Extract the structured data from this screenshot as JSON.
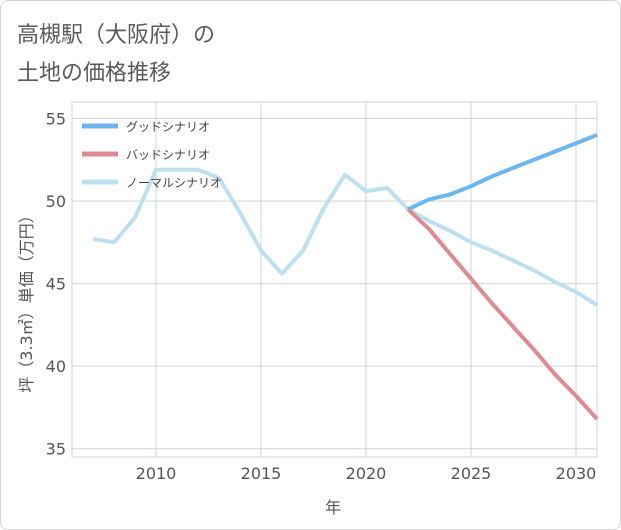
{
  "title": {
    "line1": "高槻駅（大阪府）の",
    "line2": "土地の価格推移"
  },
  "chart_data": {
    "type": "line",
    "xlabel": "年",
    "ylabel": "坪（3.3㎡）単価（万円）",
    "xlim": [
      2006,
      2031
    ],
    "ylim": [
      34.5,
      56
    ],
    "xticks": [
      2010,
      2015,
      2020,
      2025,
      2030
    ],
    "yticks": [
      35,
      40,
      45,
      50,
      55
    ],
    "grid": true,
    "legend_position": "top-left",
    "series": [
      {
        "name": "グッドシナリオ",
        "color": "#6cb6ef",
        "x": [
          2022,
          2023,
          2024,
          2025,
          2026,
          2027,
          2028,
          2029,
          2030,
          2031
        ],
        "y": [
          49.5,
          50.1,
          50.4,
          50.9,
          51.5,
          52.0,
          52.5,
          53.0,
          53.5,
          54.0
        ]
      },
      {
        "name": "バッドシナリオ",
        "color": "#dc8b92",
        "x": [
          2022,
          2023,
          2024,
          2025,
          2026,
          2027,
          2028,
          2029,
          2030,
          2031
        ],
        "y": [
          49.5,
          48.3,
          46.8,
          45.3,
          43.8,
          42.4,
          41.0,
          39.5,
          38.2,
          36.8
        ]
      },
      {
        "name": "ノーマルシナリオ",
        "color": "#bde0f0",
        "x": [
          2007,
          2008,
          2009,
          2010,
          2011,
          2012,
          2013,
          2014,
          2015,
          2016,
          2017,
          2018,
          2019,
          2020,
          2021,
          2022,
          2023,
          2024,
          2025,
          2026,
          2027,
          2028,
          2029,
          2030,
          2031
        ],
        "y": [
          47.7,
          47.5,
          49.0,
          51.9,
          51.9,
          51.9,
          51.4,
          49.3,
          47.0,
          45.6,
          47.0,
          49.6,
          51.6,
          50.6,
          50.8,
          49.5,
          48.8,
          48.2,
          47.5,
          47.0,
          46.4,
          45.8,
          45.1,
          44.5,
          43.7
        ]
      }
    ]
  }
}
